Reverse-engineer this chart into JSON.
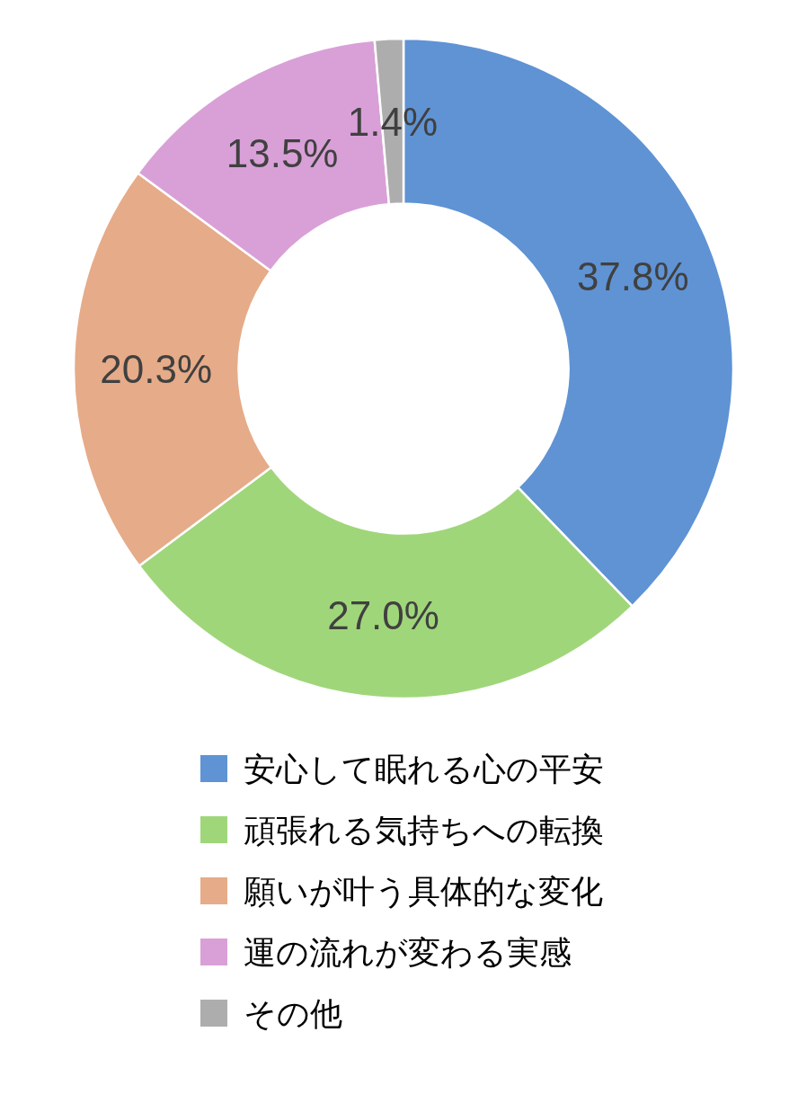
{
  "chart_data": {
    "type": "donut",
    "categories": [
      "安心して眠れる心の平安",
      "頑張れる気持ちへの転換",
      "願いが叶う具体的な変化",
      "運の流れが変わる実感",
      "その他"
    ],
    "values": [
      37.8,
      27.0,
      20.3,
      13.5,
      1.4
    ],
    "value_labels": [
      "37.8%",
      "27.0%",
      "20.3%",
      "13.5%",
      "1.4%"
    ],
    "colors": [
      "#5f93d4",
      "#a0d67a",
      "#e6ab88",
      "#d9a0d8",
      "#adadad"
    ],
    "legend": "bottom"
  }
}
